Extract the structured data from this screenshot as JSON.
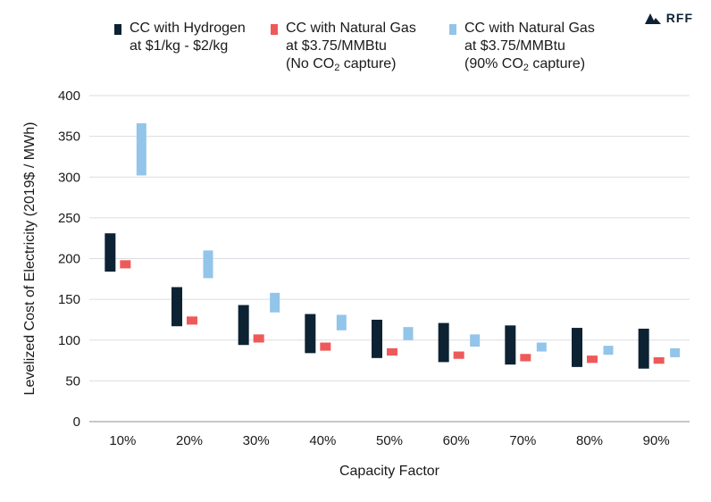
{
  "brand": {
    "logo_text": "RFF"
  },
  "legend": [
    {
      "swatch_color": "#0d2233",
      "line1": "CC with Hydrogen",
      "line2": "at $1/kg - $2/kg",
      "line3": ""
    },
    {
      "swatch_color": "#ee5a5a",
      "line1": "CC with Natural Gas",
      "line2": "at $3.75/MMBtu",
      "line3_pre": "(No CO",
      "line3_sub": "2",
      "line3_post": " capture)"
    },
    {
      "swatch_color": "#92c5e9",
      "line1": "CC with Natural Gas",
      "line2": "at $3.75/MMBtu",
      "line3_pre": "(90% CO",
      "line3_sub": "2",
      "line3_post": " capture)"
    }
  ],
  "chart_data": {
    "type": "bar",
    "subtype": "floating-range",
    "xlabel": "Capacity Factor",
    "ylabel": "Levelized Cost of Electricity (2019$ / MWh)",
    "ylim": [
      0,
      400
    ],
    "yticks": [
      0,
      50,
      100,
      150,
      200,
      250,
      300,
      350,
      400
    ],
    "grid": true,
    "legend_position": "top",
    "categories": [
      "10%",
      "20%",
      "30%",
      "40%",
      "50%",
      "60%",
      "70%",
      "80%",
      "90%"
    ],
    "series": [
      {
        "name": "CC with Hydrogen at $1/kg - $2/kg",
        "color": "#0d2233",
        "low": [
          184,
          117,
          94,
          84,
          78,
          73,
          70,
          67,
          65
        ],
        "high": [
          231,
          165,
          143,
          132,
          125,
          121,
          118,
          115,
          114
        ]
      },
      {
        "name": "CC with Natural Gas at $3.75/MMBtu (No CO2 capture)",
        "color": "#ee5a5a",
        "low": [
          188,
          119,
          97,
          87,
          81,
          77,
          74,
          72,
          71
        ],
        "high": [
          198,
          129,
          107,
          97,
          90,
          86,
          83,
          81,
          79
        ]
      },
      {
        "name": "CC with Natural Gas at $3.75/MMBtu (90% CO2 capture)",
        "color": "#92c5e9",
        "low": [
          302,
          176,
          134,
          112,
          100,
          92,
          86,
          82,
          79
        ],
        "high": [
          366,
          210,
          158,
          131,
          116,
          107,
          97,
          93,
          90
        ]
      }
    ]
  }
}
